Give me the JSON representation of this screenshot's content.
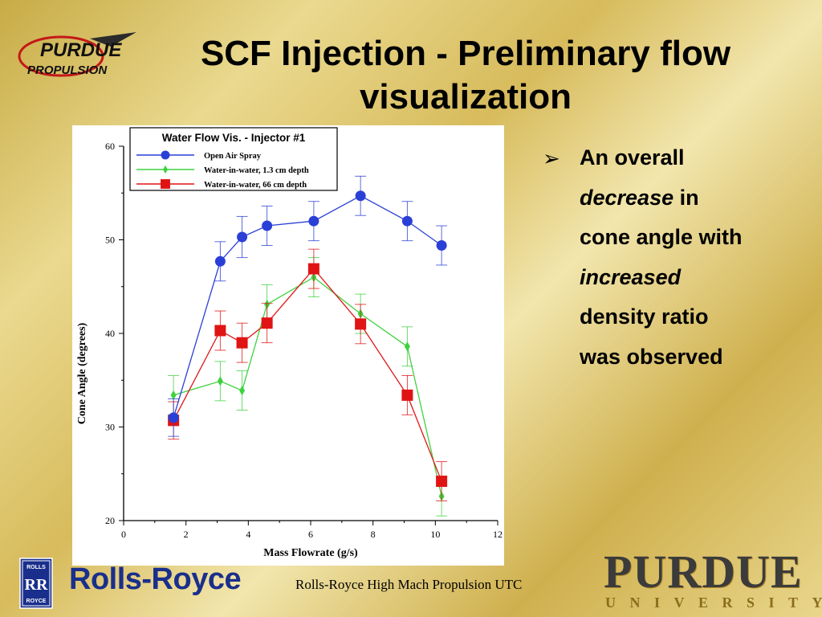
{
  "slide": {
    "title_line1": "SCF Injection -  Preliminary flow",
    "title_line2": "visualization",
    "logo_text_top": "PURDUE",
    "logo_text_bottom": "PROPULSION",
    "bullet_arrow": "➢",
    "bullet_parts": [
      "An overall",
      "decrease",
      " in",
      "cone angle with",
      "increased",
      "density ratio",
      "was observed"
    ],
    "footer_caption": "Rolls-Royce High Mach Propulsion UTC",
    "rolls_royce_badge_top": "ROLLS",
    "rolls_royce_badge_mid": "RR",
    "rolls_royce_badge_bottom": "ROYCE",
    "rolls_royce_word": "Rolls-Royce",
    "purdue_word": "PURDUE",
    "university_word": "UNIVERSITY"
  },
  "chart_data": {
    "type": "line",
    "title": "Water Flow Vis. - Injector #1",
    "xlabel": "Mass Flowrate (g/s)",
    "ylabel": "Cone Angle (degrees)",
    "xlim": [
      0,
      12
    ],
    "ylim": [
      20,
      60
    ],
    "xticks": [
      0,
      2,
      4,
      6,
      8,
      10,
      12
    ],
    "yticks": [
      20,
      30,
      40,
      50,
      60
    ],
    "legend_position": "top-left",
    "series": [
      {
        "name": "Open Air Spray",
        "color": "#2a3fd6",
        "marker": "circle",
        "x": [
          1.6,
          3.1,
          3.8,
          4.6,
          6.1,
          7.6,
          9.1,
          10.2
        ],
        "y": [
          31.0,
          47.7,
          50.3,
          51.5,
          52.0,
          54.7,
          52.0,
          49.4
        ],
        "err": [
          2.0,
          2.1,
          2.2,
          2.1,
          2.1,
          2.1,
          2.1,
          2.1
        ]
      },
      {
        "name": "Water-in-water, 1.3 cm depth",
        "color": "#3fd23f",
        "marker": "diamond",
        "x": [
          1.6,
          3.1,
          3.8,
          4.6,
          6.1,
          7.6,
          9.1,
          10.2
        ],
        "y": [
          33.4,
          34.9,
          33.9,
          43.1,
          46.0,
          42.1,
          38.6,
          22.6
        ],
        "err": [
          2.1,
          2.1,
          2.1,
          2.1,
          2.1,
          2.1,
          2.1,
          2.1
        ]
      },
      {
        "name": "Water-in-water, 66 cm depth",
        "color": "#e01414",
        "marker": "square",
        "x": [
          1.6,
          3.1,
          3.8,
          4.6,
          6.1,
          7.6,
          9.1,
          10.2
        ],
        "y": [
          30.7,
          40.3,
          39.0,
          41.1,
          46.9,
          41.0,
          33.4,
          24.2
        ],
        "err": [
          2.0,
          2.1,
          2.1,
          2.1,
          2.1,
          2.1,
          2.1,
          2.1
        ]
      }
    ]
  }
}
